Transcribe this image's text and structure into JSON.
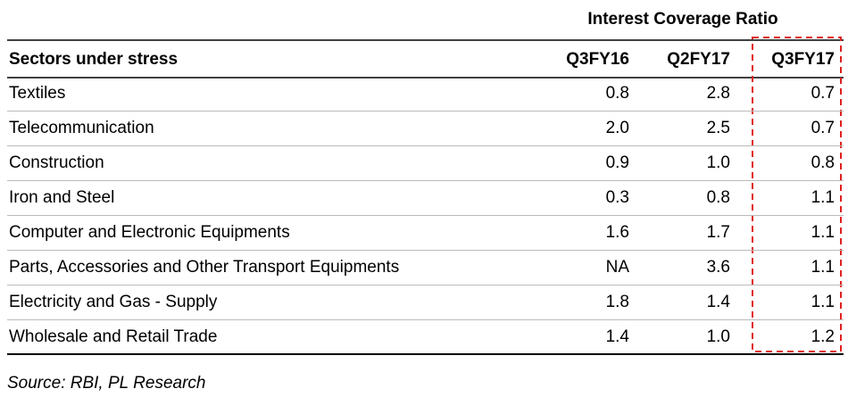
{
  "table": {
    "group_header": "Interest Coverage Ratio",
    "columns": [
      "Sectors under stress",
      "Q3FY16",
      "Q2FY17",
      "Q3FY17"
    ],
    "rows": [
      [
        "Textiles",
        "0.8",
        "2.8",
        "0.7"
      ],
      [
        "Telecommunication",
        "2.0",
        "2.5",
        "0.7"
      ],
      [
        "Construction",
        "0.9",
        "1.0",
        "0.8"
      ],
      [
        "Iron and Steel",
        "0.3",
        "0.8",
        "1.1"
      ],
      [
        "Computer and Electronic Equipments",
        "1.6",
        "1.7",
        "1.1"
      ],
      [
        "Parts, Accessories and Other Transport Equipments",
        "NA",
        "3.6",
        "1.1"
      ],
      [
        "Electricity and Gas - Supply",
        "1.8",
        "1.4",
        "1.1"
      ],
      [
        "Wholesale and Retail Trade",
        "1.4",
        "1.0",
        "1.2"
      ]
    ],
    "source": "Source: RBI, PL Research"
  }
}
